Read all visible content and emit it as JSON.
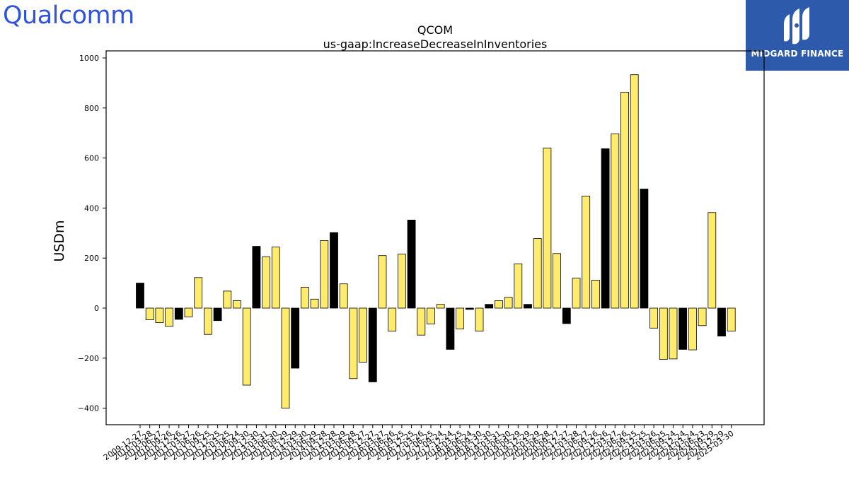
{
  "logo_left": {
    "text": "Qualcomm",
    "color": "#3253DC"
  },
  "logo_right": {
    "text": "MIDGARD FINANCE",
    "background": "#2E5AAC"
  },
  "chart_data": {
    "type": "bar",
    "title": "QCOM",
    "subtitle": "us-gaap:IncreaseDecreaseInInventories",
    "xlabel": "",
    "ylabel": "USDm",
    "ylim": [
      -460,
      1000
    ],
    "yticks": [
      -400,
      -200,
      0,
      200,
      400,
      600,
      800,
      1000
    ],
    "grid": false,
    "colors": {
      "annual": "#000000",
      "quarterly": "#FFEB6E"
    },
    "categories": [
      "2009-12-27",
      "2010-03-28",
      "2010-06-27",
      "2010-09-26",
      "2010-12-26",
      "2011-03-27",
      "2011-06-26",
      "2011-09-25",
      "2011-12-25",
      "2012-03-25",
      "2012-06-24",
      "2012-09-30",
      "2012-12-30",
      "2013-03-31",
      "2013-06-30",
      "2013-09-29",
      "2013-12-29",
      "2014-03-30",
      "2014-06-29",
      "2014-09-28",
      "2014-12-28",
      "2015-03-29",
      "2015-06-28",
      "2015-09-27",
      "2015-12-27",
      "2016-03-27",
      "2016-06-26",
      "2016-09-25",
      "2016-12-25",
      "2017-03-26",
      "2017-06-25",
      "2017-09-24",
      "2017-12-24",
      "2018-03-25",
      "2018-06-24",
      "2018-09-30",
      "2018-12-30",
      "2019-03-31",
      "2019-06-30",
      "2019-09-29",
      "2019-12-29",
      "2020-03-29",
      "2020-06-28",
      "2020-09-27",
      "2020-12-27",
      "2021-03-28",
      "2021-06-27",
      "2021-09-26",
      "2021-12-26",
      "2022-03-27",
      "2022-06-26",
      "2022-09-25",
      "2022-12-25",
      "2023-03-26",
      "2023-06-25",
      "2023-09-24",
      "2023-12-24",
      "2024-03-24",
      "2024-06-23",
      "2024-09-29",
      "2024-12-29",
      "2025-03-30"
    ],
    "tick_labels_visible": [
      "2009-12-27",
      "2010-03-28",
      "2010-06-27",
      "2010-09-26",
      "2010-12-26",
      "2011-03-27",
      "2011-06-26",
      "2011-09-25",
      "2011-12-25",
      "2012-03-25",
      "2012-06-24",
      "2012-09-30",
      "2012-12-30",
      "2013-03-31",
      "2013-06-30",
      "2013-09-29",
      "2013-12-29",
      "2014-03-30",
      "2014-06-29",
      "2014-09-28",
      "2014-12-28",
      "2015-03-29",
      "2015-06-28",
      "2015-09-27",
      "2015-12-27",
      "2016-03-27",
      "2016-06-26",
      "2016-09-25",
      "2016-12-25",
      "2017-03-26",
      "2017-06-25",
      "2017-09-24",
      "2017-12-24",
      "2018-03-25",
      "2018-06-24",
      "2018-09-30",
      "2018-12-30",
      "2019-03-31",
      "2019-06-30",
      "2019-09-29",
      "2019-12-29",
      "2020-03-29",
      "2020-06-28",
      "2020-09-27",
      "2020-12-27",
      "2021-03-28",
      "2021-06-27",
      "2021-09-26",
      "2021-12-26",
      "2022-03-27",
      "2022-06-26",
      "2022-09-25",
      "2022-12-25",
      "2023-03-26",
      "2023-06-25",
      "2023-09-24",
      "2023-12-24",
      "2024-03-24",
      "2024-06-23",
      "2024-09-29",
      "2024-12-29",
      "2025-03-30"
    ],
    "values": [
      100,
      -47,
      -58,
      -73,
      -45,
      -35,
      122,
      -105,
      -50,
      68,
      30,
      -308,
      247,
      205,
      244,
      -400,
      -240,
      83,
      36,
      270,
      302,
      97,
      -282,
      -216,
      -295,
      210,
      -92,
      216,
      352,
      -108,
      -63,
      15,
      -165,
      -83,
      -5,
      -92,
      15,
      30,
      43,
      177,
      15,
      278,
      640,
      218,
      -62,
      120,
      448,
      112,
      637,
      697,
      863,
      933,
      476,
      -80,
      -205,
      -203,
      -165,
      -167,
      -70,
      382,
      -112,
      -92
    ],
    "bar_kinds": [
      "A",
      "Q",
      "Q",
      "Q",
      "A",
      "Q",
      "Q",
      "Q",
      "A",
      "Q",
      "Q",
      "Q",
      "A",
      "Q",
      "Q",
      "Q",
      "A",
      "Q",
      "Q",
      "Q",
      "A",
      "Q",
      "Q",
      "Q",
      "A",
      "Q",
      "Q",
      "Q",
      "A",
      "Q",
      "Q",
      "Q",
      "A",
      "Q",
      "A",
      "Q",
      "A",
      "Q",
      "Q",
      "Q",
      "A",
      "Q",
      "Q",
      "Q",
      "A",
      "Q",
      "Q",
      "Q",
      "A",
      "Q",
      "Q",
      "Q",
      "A",
      "Q",
      "Q",
      "Q",
      "A",
      "Q",
      "Q",
      "Q",
      "A",
      "Q"
    ]
  }
}
